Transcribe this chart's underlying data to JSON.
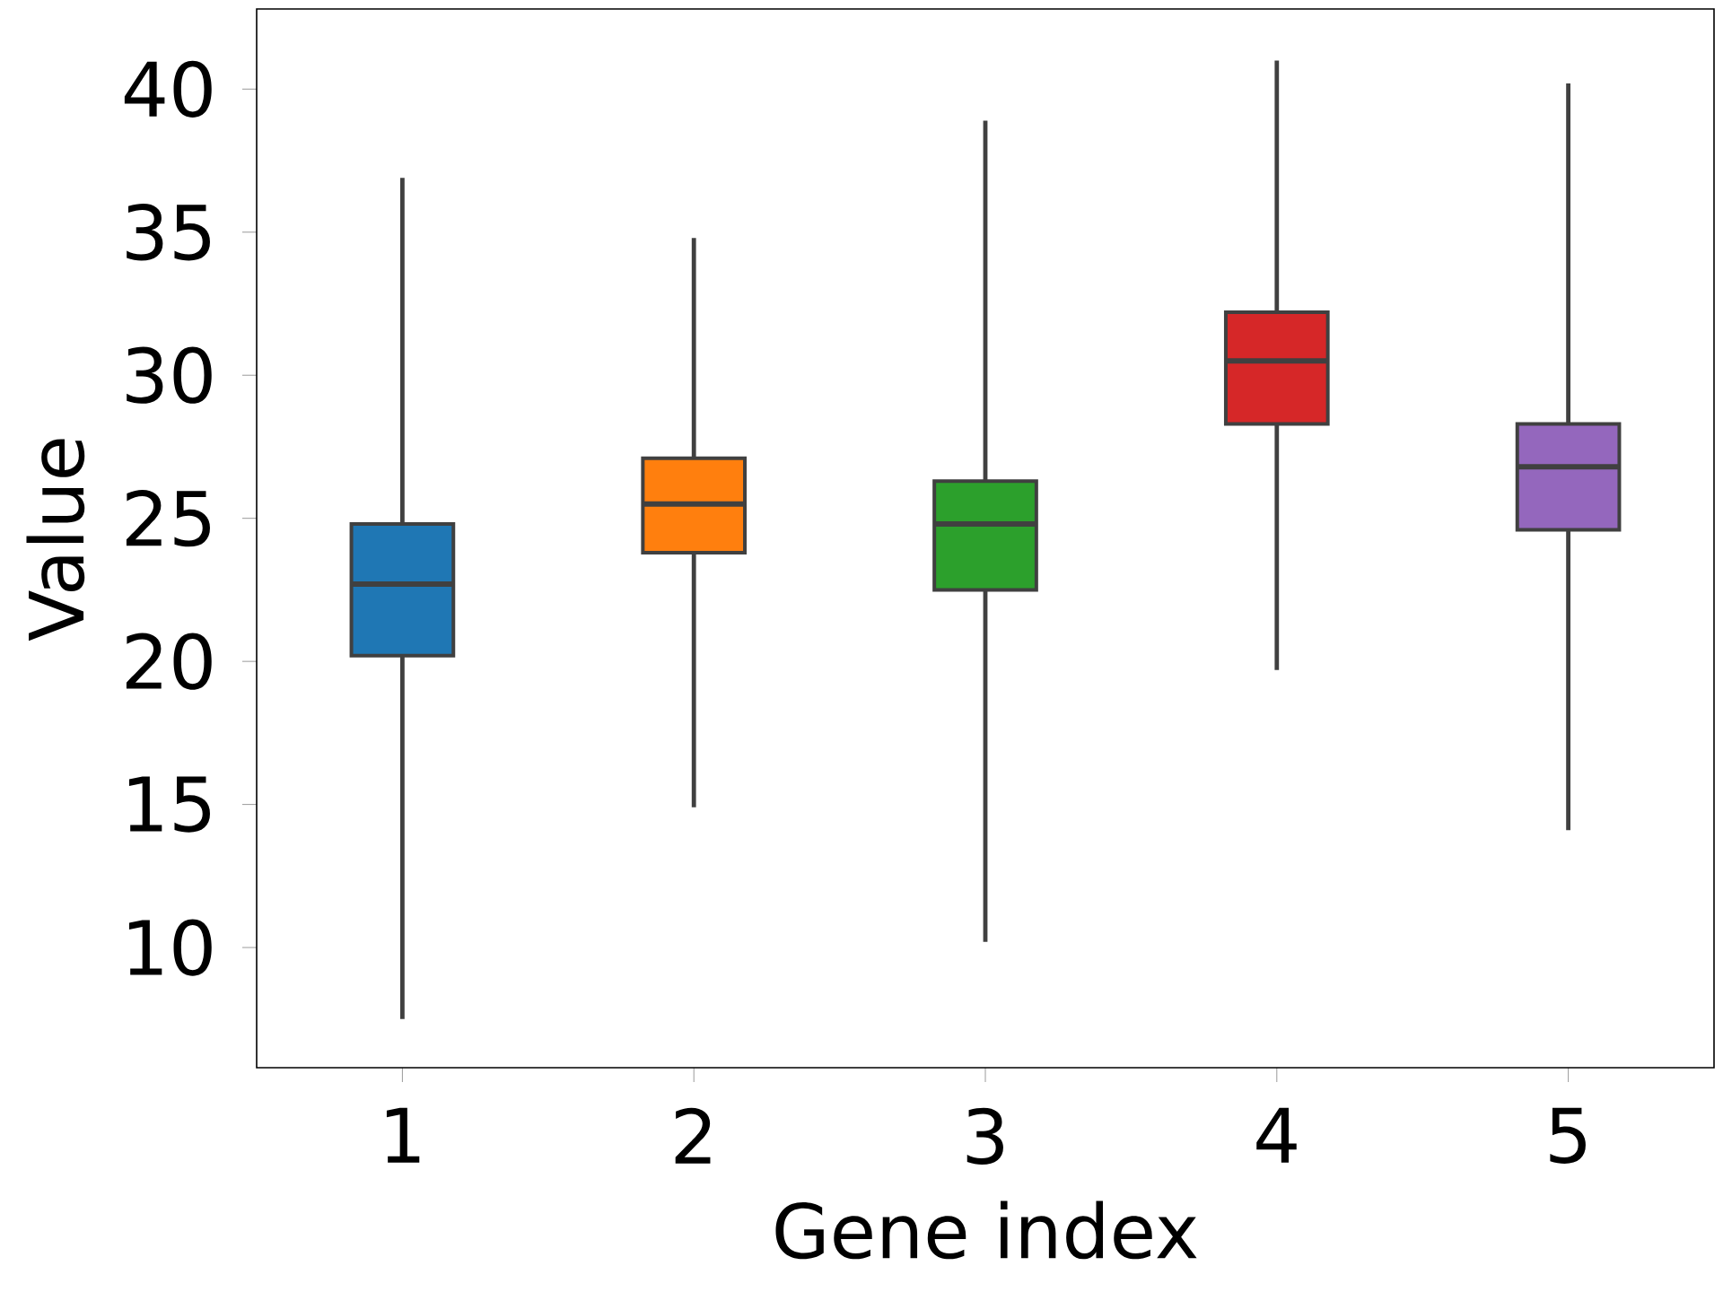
{
  "chart_data": {
    "type": "box",
    "xlabel": "Gene index",
    "ylabel": "Value",
    "categories": [
      "1",
      "2",
      "3",
      "4",
      "5"
    ],
    "colors": [
      "#1f77b4",
      "#ff7f0e",
      "#2ca02c",
      "#d62728",
      "#9467bd"
    ],
    "boxes": [
      {
        "low": 7.5,
        "q1": 20.2,
        "median": 22.7,
        "q3": 24.8,
        "high": 36.9
      },
      {
        "low": 14.9,
        "q1": 23.8,
        "median": 25.5,
        "q3": 27.1,
        "high": 34.8
      },
      {
        "low": 10.2,
        "q1": 22.5,
        "median": 24.8,
        "q3": 26.3,
        "high": 38.9
      },
      {
        "low": 19.7,
        "q1": 28.3,
        "median": 30.5,
        "q3": 32.2,
        "high": 41.0
      },
      {
        "low": 14.1,
        "q1": 24.6,
        "median": 26.8,
        "q3": 28.3,
        "high": 40.2
      }
    ],
    "ylim": [
      5.8,
      42.8
    ],
    "yticks": [
      10,
      15,
      20,
      25,
      30,
      35,
      40
    ],
    "grid": false
  }
}
